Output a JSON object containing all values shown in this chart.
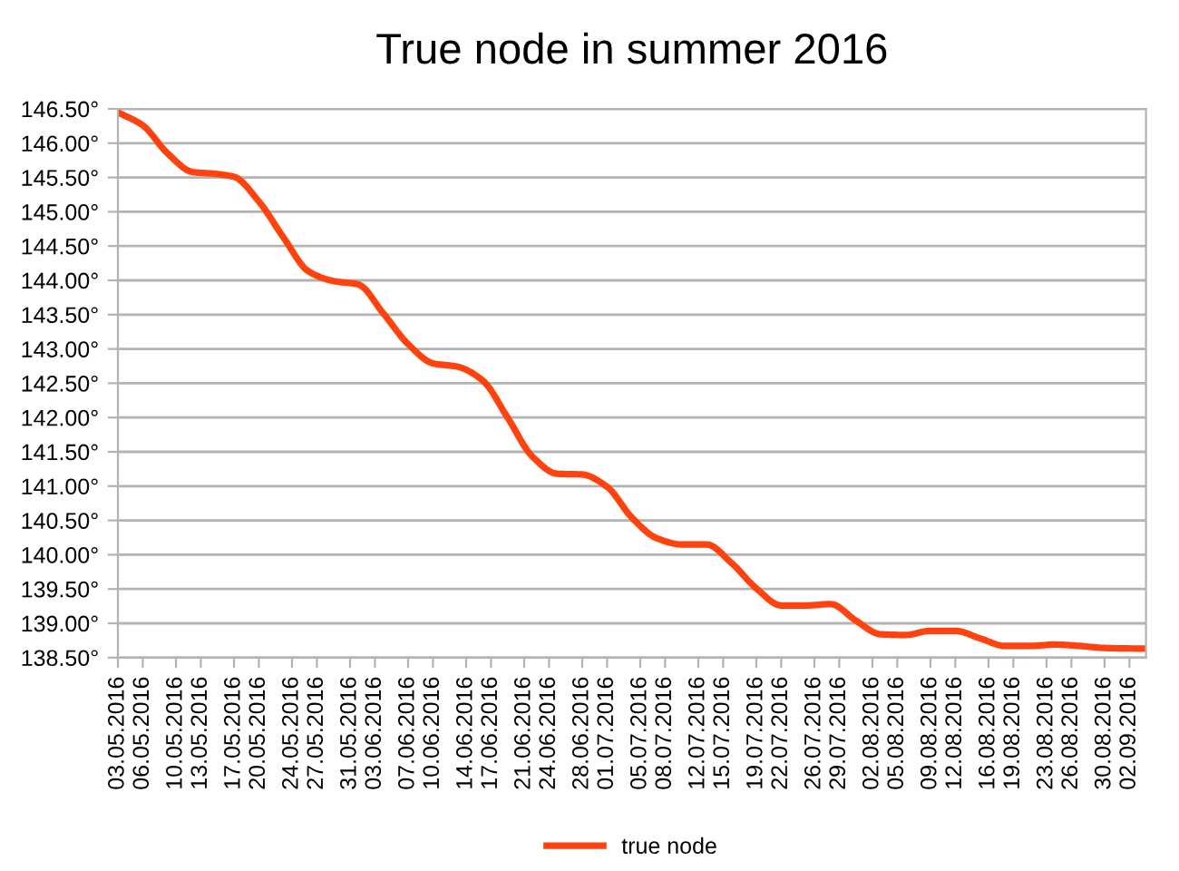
{
  "chart_data": {
    "type": "line",
    "title": "True node in summer 2016",
    "x": [
      "2016-05-03",
      "2016-05-06",
      "2016-05-09",
      "2016-05-12",
      "2016-05-15",
      "2016-05-17",
      "2016-05-20",
      "2016-05-23",
      "2016-05-26",
      "2016-05-29",
      "2016-06-01",
      "2016-06-04",
      "2016-06-07",
      "2016-06-10",
      "2016-06-13",
      "2016-06-16",
      "2016-06-19",
      "2016-06-22",
      "2016-06-25",
      "2016-06-28",
      "2016-07-01",
      "2016-07-04",
      "2016-07-07",
      "2016-07-10",
      "2016-07-13",
      "2016-07-16",
      "2016-07-19",
      "2016-07-22",
      "2016-07-25",
      "2016-07-28",
      "2016-07-31",
      "2016-08-03",
      "2016-08-06",
      "2016-08-09",
      "2016-08-12",
      "2016-08-15",
      "2016-08-18",
      "2016-08-21",
      "2016-08-24",
      "2016-08-27",
      "2016-08-30",
      "2016-09-04"
    ],
    "series": [
      {
        "name": "true node",
        "color": "#ff420e",
        "values": [
          146.45,
          146.26,
          145.85,
          145.58,
          145.55,
          145.51,
          145.15,
          144.62,
          144.13,
          143.99,
          143.94,
          143.52,
          143.07,
          142.79,
          142.74,
          142.54,
          142.0,
          141.43,
          141.18,
          141.17,
          140.99,
          140.54,
          140.24,
          140.15,
          140.15,
          139.88,
          139.51,
          139.26,
          139.26,
          139.28,
          139.04,
          138.84,
          138.83,
          138.89,
          138.89,
          138.78,
          138.67,
          138.67,
          138.69,
          138.67,
          138.64,
          138.63
        ]
      }
    ],
    "xlim": [
      "2016-05-03",
      "2016-09-04"
    ],
    "xticks": [
      {
        "value": "2016-05-03",
        "label": "03.05.2016"
      },
      {
        "value": "2016-05-06",
        "label": "06.05.2016"
      },
      {
        "value": "2016-05-10",
        "label": "10.05.2016"
      },
      {
        "value": "2016-05-13",
        "label": "13.05.2016"
      },
      {
        "value": "2016-05-17",
        "label": "17.05.2016"
      },
      {
        "value": "2016-05-20",
        "label": "20.05.2016"
      },
      {
        "value": "2016-05-24",
        "label": "24.05.2016"
      },
      {
        "value": "2016-05-27",
        "label": "27.05.2016"
      },
      {
        "value": "2016-05-31",
        "label": "31.05.2016"
      },
      {
        "value": "2016-06-03",
        "label": "03.06.2016"
      },
      {
        "value": "2016-06-07",
        "label": "07.06.2016"
      },
      {
        "value": "2016-06-10",
        "label": "10.06.2016"
      },
      {
        "value": "2016-06-14",
        "label": "14.06.2016"
      },
      {
        "value": "2016-06-17",
        "label": "17.06.2016"
      },
      {
        "value": "2016-06-21",
        "label": "21.06.2016"
      },
      {
        "value": "2016-06-24",
        "label": "24.06.2016"
      },
      {
        "value": "2016-06-28",
        "label": "28.06.2016"
      },
      {
        "value": "2016-07-01",
        "label": "01.07.2016"
      },
      {
        "value": "2016-07-05",
        "label": "05.07.2016"
      },
      {
        "value": "2016-07-08",
        "label": "08.07.2016"
      },
      {
        "value": "2016-07-12",
        "label": "12.07.2016"
      },
      {
        "value": "2016-07-15",
        "label": "15.07.2016"
      },
      {
        "value": "2016-07-19",
        "label": "19.07.2016"
      },
      {
        "value": "2016-07-22",
        "label": "22.07.2016"
      },
      {
        "value": "2016-07-26",
        "label": "26.07.2016"
      },
      {
        "value": "2016-07-29",
        "label": "29.07.2016"
      },
      {
        "value": "2016-08-02",
        "label": "02.08.2016"
      },
      {
        "value": "2016-08-05",
        "label": "05.08.2016"
      },
      {
        "value": "2016-08-09",
        "label": "09.08.2016"
      },
      {
        "value": "2016-08-12",
        "label": "12.08.2016"
      },
      {
        "value": "2016-08-16",
        "label": "16.08.2016"
      },
      {
        "value": "2016-08-19",
        "label": "19.08.2016"
      },
      {
        "value": "2016-08-23",
        "label": "23.08.2016"
      },
      {
        "value": "2016-08-26",
        "label": "26.08.2016"
      },
      {
        "value": "2016-08-30",
        "label": "30.08.2016"
      },
      {
        "value": "2016-09-02",
        "label": "02.09.2016"
      }
    ],
    "ylim": [
      138.5,
      146.5
    ],
    "yticks": [
      {
        "value": 138.5,
        "label": "138.50°"
      },
      {
        "value": 139,
        "label": "139.00°"
      },
      {
        "value": 139.5,
        "label": "139.50°"
      },
      {
        "value": 140,
        "label": "140.00°"
      },
      {
        "value": 140.5,
        "label": "140.50°"
      },
      {
        "value": 141,
        "label": "141.00°"
      },
      {
        "value": 141.5,
        "label": "141.50°"
      },
      {
        "value": 142,
        "label": "142.00°"
      },
      {
        "value": 142.5,
        "label": "142.50°"
      },
      {
        "value": 143,
        "label": "143.00°"
      },
      {
        "value": 143.5,
        "label": "143.50°"
      },
      {
        "value": 144,
        "label": "144.00°"
      },
      {
        "value": 144.5,
        "label": "144.50°"
      },
      {
        "value": 145,
        "label": "145.00°"
      },
      {
        "value": 145.5,
        "label": "145.50°"
      },
      {
        "value": 146,
        "label": "146.00°"
      },
      {
        "value": 146.5,
        "label": "146.50°"
      }
    ],
    "grid": "y",
    "legend": "bottom",
    "marker": "none",
    "line_style": "solid"
  }
}
